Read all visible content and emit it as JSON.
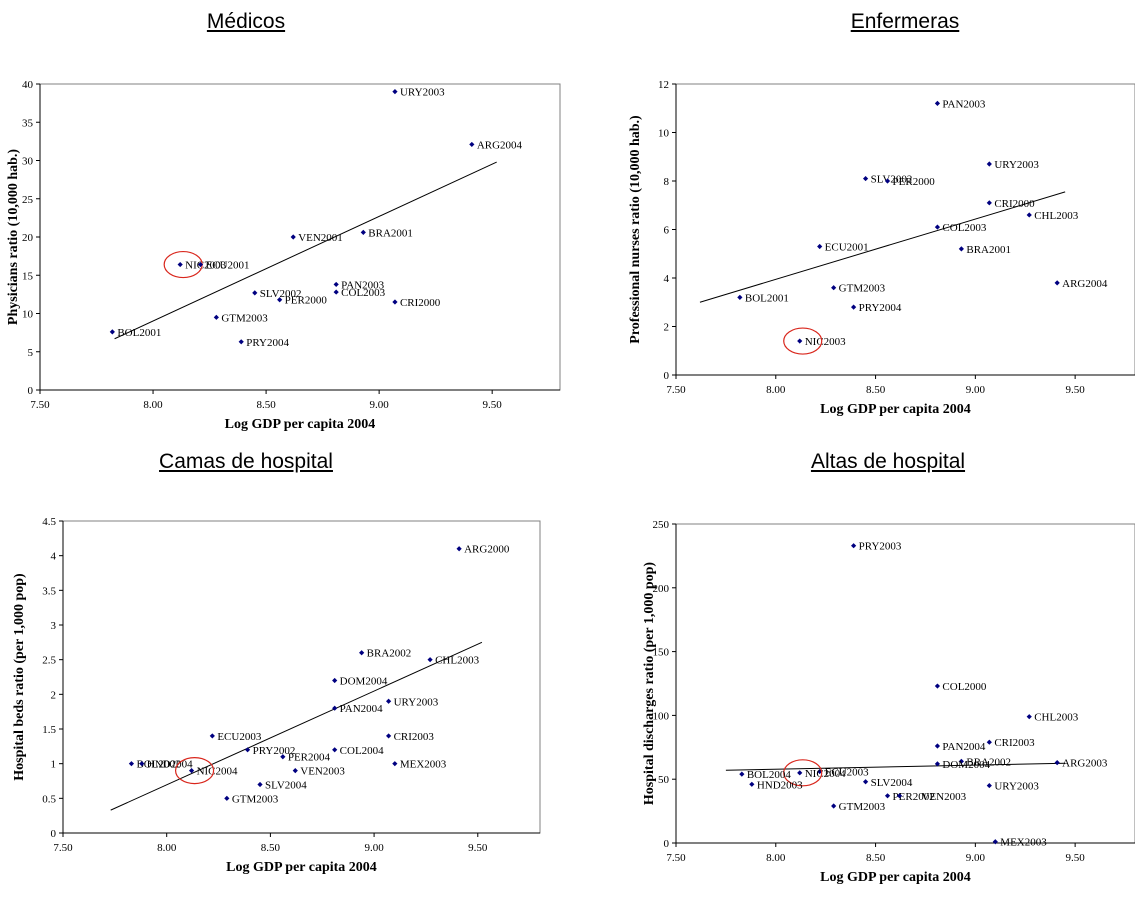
{
  "panels": [
    {
      "title": "Médicos"
    },
    {
      "title": "Enfermeras"
    },
    {
      "title": "Camas de hospital"
    },
    {
      "title": "Altas de hospital"
    }
  ],
  "colors": {
    "marker": "#000080",
    "trend": "#000000",
    "highlight": "#d9261c",
    "plot_border": "#808080"
  },
  "chart_data": [
    {
      "type": "scatter",
      "title": "Médicos",
      "xlabel": "Log GDP per capita 2004",
      "ylabel": "Physicians ratio (10,000 hab.)",
      "xlim": [
        7.5,
        9.8
      ],
      "ylim": [
        0,
        40
      ],
      "xticks": [
        "7.50",
        "8.00",
        "8.50",
        "9.00",
        "9.50"
      ],
      "yticks": [
        "0",
        "5",
        "10",
        "15",
        "20",
        "25",
        "30",
        "35",
        "40"
      ],
      "grid": false,
      "points": [
        {
          "label": "URY2003",
          "x": 9.07,
          "y": 39.0
        },
        {
          "label": "ARG2004",
          "x": 9.41,
          "y": 32.1
        },
        {
          "label": "BRA2001",
          "x": 8.93,
          "y": 20.6
        },
        {
          "label": "VEN2001",
          "x": 8.62,
          "y": 20.0
        },
        {
          "label": "NIC2003",
          "x": 8.12,
          "y": 16.4
        },
        {
          "label": "ECU2001",
          "x": 8.21,
          "y": 16.4
        },
        {
          "label": "PAN2003",
          "x": 8.81,
          "y": 13.8
        },
        {
          "label": "COL2003",
          "x": 8.81,
          "y": 12.8
        },
        {
          "label": "SLV2002",
          "x": 8.45,
          "y": 12.7
        },
        {
          "label": "PER2000",
          "x": 8.56,
          "y": 11.8
        },
        {
          "label": "CRI2000",
          "x": 9.07,
          "y": 11.5
        },
        {
          "label": "GTM2003",
          "x": 8.28,
          "y": 9.5
        },
        {
          "label": "BOL2001",
          "x": 7.82,
          "y": 7.6
        },
        {
          "label": "PRY2004",
          "x": 8.39,
          "y": 6.3
        }
      ],
      "trendline": [
        [
          7.83,
          6.7
        ],
        [
          9.52,
          29.8
        ]
      ],
      "highlight": "NIC2003"
    },
    {
      "type": "scatter",
      "title": "Enfermeras",
      "xlabel": "Log GDP per capita 2004",
      "ylabel": "Professional nurses ratio (10,000 hab.)",
      "xlim": [
        7.5,
        9.8
      ],
      "ylim": [
        0,
        12
      ],
      "xticks": [
        "7.50",
        "8.00",
        "8.50",
        "9.00",
        "9.50"
      ],
      "yticks": [
        "0",
        "2",
        "4",
        "6",
        "8",
        "10",
        "12"
      ],
      "grid": false,
      "points": [
        {
          "label": "PAN2003",
          "x": 8.81,
          "y": 11.2
        },
        {
          "label": "URY2003",
          "x": 9.07,
          "y": 8.7
        },
        {
          "label": "SLV2002",
          "x": 8.45,
          "y": 8.1
        },
        {
          "label": "PER2000",
          "x": 8.56,
          "y": 8.0
        },
        {
          "label": "CRI2000",
          "x": 9.07,
          "y": 7.1
        },
        {
          "label": "CHL2003",
          "x": 9.27,
          "y": 6.6
        },
        {
          "label": "COL2003",
          "x": 8.81,
          "y": 6.1
        },
        {
          "label": "ECU2001",
          "x": 8.22,
          "y": 5.3
        },
        {
          "label": "BRA2001",
          "x": 8.93,
          "y": 5.2
        },
        {
          "label": "ARG2004",
          "x": 9.41,
          "y": 3.8
        },
        {
          "label": "GTM2003",
          "x": 8.29,
          "y": 3.6
        },
        {
          "label": "BOL2001",
          "x": 7.82,
          "y": 3.2
        },
        {
          "label": "PRY2004",
          "x": 8.39,
          "y": 2.8
        },
        {
          "label": "NIC2003",
          "x": 8.12,
          "y": 1.4
        }
      ],
      "trendline": [
        [
          7.62,
          3.0
        ],
        [
          9.45,
          7.55
        ]
      ],
      "highlight": "NIC2003"
    },
    {
      "type": "scatter",
      "title": "Camas de hospital",
      "xlabel": "Log GDP per capita 2004",
      "ylabel": "Hospital beds ratio (per 1,000 pop)",
      "xlim": [
        7.5,
        9.8
      ],
      "ylim": [
        0,
        4.5
      ],
      "xticks": [
        "7.50",
        "8.00",
        "8.50",
        "9.00",
        "9.50"
      ],
      "yticks": [
        "0",
        "0.5",
        "1",
        "1.5",
        "2",
        "2.5",
        "3",
        "3.5",
        "4",
        "4.5"
      ],
      "grid": false,
      "points": [
        {
          "label": "ARG2000",
          "x": 9.41,
          "y": 4.1
        },
        {
          "label": "BRA2002",
          "x": 8.94,
          "y": 2.6
        },
        {
          "label": "CHL2003",
          "x": 9.27,
          "y": 2.5
        },
        {
          "label": "DOM2004",
          "x": 8.81,
          "y": 2.2
        },
        {
          "label": "URY2003",
          "x": 9.07,
          "y": 1.9
        },
        {
          "label": "PAN2004",
          "x": 8.81,
          "y": 1.8
        },
        {
          "label": "ECU2003",
          "x": 8.22,
          "y": 1.4
        },
        {
          "label": "CRI2003",
          "x": 9.07,
          "y": 1.4
        },
        {
          "label": "PRY2002",
          "x": 8.39,
          "y": 1.2
        },
        {
          "label": "COL2004",
          "x": 8.81,
          "y": 1.2
        },
        {
          "label": "PER2004",
          "x": 8.56,
          "y": 1.1
        },
        {
          "label": "BOL2002",
          "x": 7.83,
          "y": 1.0
        },
        {
          "label": "HND2004",
          "x": 7.88,
          "y": 1.0
        },
        {
          "label": "MEX2003",
          "x": 9.1,
          "y": 1.0
        },
        {
          "label": "NIC2004",
          "x": 8.12,
          "y": 0.9
        },
        {
          "label": "VEN2003",
          "x": 8.62,
          "y": 0.9
        },
        {
          "label": "SLV2004",
          "x": 8.45,
          "y": 0.7
        },
        {
          "label": "GTM2003",
          "x": 8.29,
          "y": 0.5
        }
      ],
      "trendline": [
        [
          7.73,
          0.33
        ],
        [
          9.52,
          2.75
        ]
      ],
      "highlight": "NIC2004"
    },
    {
      "type": "scatter",
      "title": "Altas de hospital",
      "xlabel": "Log GDP per capita 2004",
      "ylabel": "Hospital discharges ratio (per 1,000 pop)",
      "xlim": [
        7.5,
        9.8
      ],
      "ylim": [
        0,
        250
      ],
      "xticks": [
        "7.50",
        "8.00",
        "8.50",
        "9.00",
        "9.50"
      ],
      "yticks": [
        "0",
        "50",
        "100",
        "150",
        "200",
        "250"
      ],
      "grid": false,
      "points": [
        {
          "label": "PRY2003",
          "x": 8.39,
          "y": 233
        },
        {
          "label": "COL2000",
          "x": 8.81,
          "y": 123
        },
        {
          "label": "CHL2003",
          "x": 9.27,
          "y": 99
        },
        {
          "label": "CRI2003",
          "x": 9.07,
          "y": 79
        },
        {
          "label": "PAN2004",
          "x": 8.81,
          "y": 76
        },
        {
          "label": "BRA2002",
          "x": 8.93,
          "y": 64
        },
        {
          "label": "ARG2003",
          "x": 9.41,
          "y": 63
        },
        {
          "label": "DOM2004",
          "x": 8.81,
          "y": 62
        },
        {
          "label": "ECU2003",
          "x": 8.22,
          "y": 56
        },
        {
          "label": "NIC2004",
          "x": 8.12,
          "y": 55
        },
        {
          "label": "BOL2004",
          "x": 7.83,
          "y": 54
        },
        {
          "label": "SLV2004",
          "x": 8.45,
          "y": 48
        },
        {
          "label": "HND2003",
          "x": 7.88,
          "y": 46
        },
        {
          "label": "URY2003",
          "x": 9.07,
          "y": 45
        },
        {
          "label": "PER2002",
          "x": 8.56,
          "y": 37
        },
        {
          "label": "VEN2003",
          "x": 8.62,
          "y": 37
        },
        {
          "label": "GTM2003",
          "x": 8.29,
          "y": 29
        },
        {
          "label": "MEX2003",
          "x": 9.1,
          "y": 1
        }
      ],
      "trendline": [
        [
          7.75,
          57
        ],
        [
          9.45,
          62.5
        ]
      ],
      "highlight": "NIC2004"
    }
  ]
}
